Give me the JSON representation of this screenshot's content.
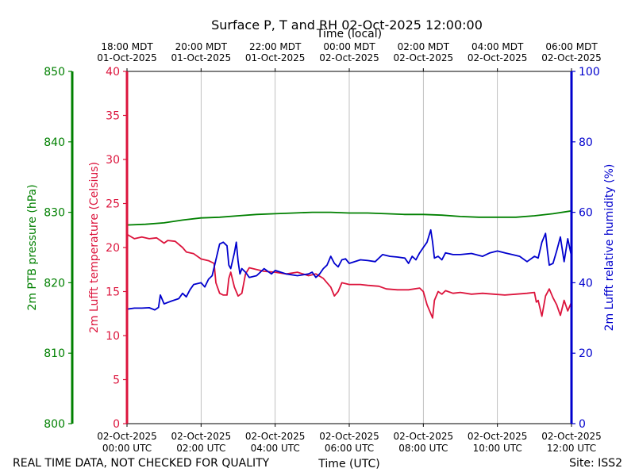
{
  "chart_data": {
    "type": "line",
    "title": "Surface P, T and RH 02-Oct-2025 12:00:00",
    "top_axis_label": "Time (local)",
    "xlabel": "Time (UTC)",
    "x_hours_utc": [
      0,
      12
    ],
    "grid": "vertical lines at 2-hour ticks",
    "top_ticks": [
      {
        "h": 0,
        "line1": "18:00 MDT",
        "line2": "01-Oct-2025"
      },
      {
        "h": 2,
        "line1": "20:00 MDT",
        "line2": "01-Oct-2025"
      },
      {
        "h": 4,
        "line1": "22:00 MDT",
        "line2": "01-Oct-2025"
      },
      {
        "h": 6,
        "line1": "00:00 MDT",
        "line2": "02-Oct-2025"
      },
      {
        "h": 8,
        "line1": "02:00 MDT",
        "line2": "02-Oct-2025"
      },
      {
        "h": 10,
        "line1": "04:00 MDT",
        "line2": "02-Oct-2025"
      },
      {
        "h": 12,
        "line1": "06:00 MDT",
        "line2": "02-Oct-2025"
      }
    ],
    "bottom_ticks": [
      {
        "h": 0,
        "line1": "02-Oct-2025",
        "line2": "00:00 UTC"
      },
      {
        "h": 2,
        "line1": "02-Oct-2025",
        "line2": "02:00 UTC"
      },
      {
        "h": 4,
        "line1": "02-Oct-2025",
        "line2": "04:00 UTC"
      },
      {
        "h": 6,
        "line1": "02-Oct-2025",
        "line2": "06:00 UTC"
      },
      {
        "h": 8,
        "line1": "02-Oct-2025",
        "line2": "08:00 UTC"
      },
      {
        "h": 10,
        "line1": "02-Oct-2025",
        "line2": "10:00 UTC"
      },
      {
        "h": 12,
        "line1": "02-Oct-2025",
        "line2": "12:00 UTC"
      }
    ],
    "axes": {
      "pressure": {
        "label": "2m PTB pressure (hPa)",
        "ylim": [
          800,
          850
        ],
        "ticks": [
          800,
          810,
          820,
          830,
          840,
          850
        ],
        "color": "#008000"
      },
      "temperature": {
        "label": "2m Lufft temperature (Celsius)",
        "ylim": [
          0,
          40
        ],
        "ticks": [
          0,
          5,
          10,
          15,
          20,
          25,
          30,
          35,
          40
        ],
        "color": "#dc143c"
      },
      "humidity": {
        "label": "2m Lufft relative humidity (%)",
        "ylim": [
          0,
          100
        ],
        "ticks": [
          0,
          20,
          40,
          60,
          80,
          100
        ],
        "color": "#0000cd"
      }
    },
    "series": [
      {
        "name": "2m PTB pressure (hPa)",
        "axis": "pressure",
        "color": "#008000",
        "points": [
          [
            0,
            828.2
          ],
          [
            0.5,
            828.3
          ],
          [
            1,
            828.5
          ],
          [
            1.5,
            828.9
          ],
          [
            2,
            829.2
          ],
          [
            2.5,
            829.3
          ],
          [
            3,
            829.5
          ],
          [
            3.5,
            829.7
          ],
          [
            4,
            829.8
          ],
          [
            4.5,
            829.9
          ],
          [
            5,
            830.0
          ],
          [
            5.5,
            830.0
          ],
          [
            6,
            829.9
          ],
          [
            6.5,
            829.9
          ],
          [
            7,
            829.8
          ],
          [
            7.5,
            829.7
          ],
          [
            8,
            829.7
          ],
          [
            8.5,
            829.6
          ],
          [
            9,
            829.4
          ],
          [
            9.5,
            829.3
          ],
          [
            10,
            829.3
          ],
          [
            10.5,
            829.3
          ],
          [
            11,
            829.5
          ],
          [
            11.5,
            829.8
          ],
          [
            12,
            830.2
          ]
        ]
      },
      {
        "name": "2m Lufft temperature (Celsius)",
        "axis": "temperature",
        "color": "#dc143c",
        "points": [
          [
            0,
            21.5
          ],
          [
            0.2,
            21.0
          ],
          [
            0.4,
            21.2
          ],
          [
            0.6,
            21.0
          ],
          [
            0.8,
            21.1
          ],
          [
            0.9,
            20.8
          ],
          [
            1.0,
            20.5
          ],
          [
            1.1,
            20.8
          ],
          [
            1.3,
            20.7
          ],
          [
            1.5,
            20.0
          ],
          [
            1.6,
            19.5
          ],
          [
            1.8,
            19.3
          ],
          [
            2.0,
            18.7
          ],
          [
            2.2,
            18.5
          ],
          [
            2.35,
            18.2
          ],
          [
            2.4,
            16.0
          ],
          [
            2.5,
            14.8
          ],
          [
            2.6,
            14.6
          ],
          [
            2.7,
            14.6
          ],
          [
            2.75,
            16.5
          ],
          [
            2.8,
            17.2
          ],
          [
            2.9,
            15.5
          ],
          [
            3.0,
            14.5
          ],
          [
            3.1,
            14.8
          ],
          [
            3.2,
            17.0
          ],
          [
            3.3,
            17.7
          ],
          [
            3.5,
            17.5
          ],
          [
            3.7,
            17.3
          ],
          [
            4.0,
            17.2
          ],
          [
            4.3,
            17.0
          ],
          [
            4.6,
            17.2
          ],
          [
            4.9,
            16.8
          ],
          [
            5.1,
            17.0
          ],
          [
            5.3,
            16.5
          ],
          [
            5.5,
            15.5
          ],
          [
            5.6,
            14.5
          ],
          [
            5.7,
            15.0
          ],
          [
            5.8,
            16.0
          ],
          [
            6.0,
            15.8
          ],
          [
            6.3,
            15.8
          ],
          [
            6.5,
            15.7
          ],
          [
            6.8,
            15.6
          ],
          [
            7.0,
            15.3
          ],
          [
            7.3,
            15.2
          ],
          [
            7.6,
            15.2
          ],
          [
            7.9,
            15.4
          ],
          [
            8.0,
            15.0
          ],
          [
            8.1,
            13.5
          ],
          [
            8.2,
            12.5
          ],
          [
            8.25,
            12.0
          ],
          [
            8.3,
            14.0
          ],
          [
            8.4,
            15.0
          ],
          [
            8.5,
            14.7
          ],
          [
            8.6,
            15.1
          ],
          [
            8.8,
            14.8
          ],
          [
            9.0,
            14.9
          ],
          [
            9.3,
            14.7
          ],
          [
            9.6,
            14.8
          ],
          [
            9.9,
            14.7
          ],
          [
            10.2,
            14.6
          ],
          [
            10.5,
            14.7
          ],
          [
            10.8,
            14.8
          ],
          [
            11.0,
            14.9
          ],
          [
            11.05,
            13.8
          ],
          [
            11.1,
            14.0
          ],
          [
            11.2,
            12.2
          ],
          [
            11.3,
            14.5
          ],
          [
            11.4,
            15.3
          ],
          [
            11.5,
            14.3
          ],
          [
            11.6,
            13.5
          ],
          [
            11.7,
            12.3
          ],
          [
            11.8,
            14.0
          ],
          [
            11.9,
            12.8
          ],
          [
            12.0,
            13.8
          ]
        ]
      },
      {
        "name": "2m Lufft relative humidity (%)",
        "axis": "humidity",
        "color": "#0000cd",
        "points": [
          [
            0,
            32.5
          ],
          [
            0.2,
            32.8
          ],
          [
            0.4,
            32.8
          ],
          [
            0.6,
            32.9
          ],
          [
            0.75,
            32.3
          ],
          [
            0.85,
            33.0
          ],
          [
            0.9,
            36.5
          ],
          [
            1.0,
            34.0
          ],
          [
            1.2,
            34.8
          ],
          [
            1.4,
            35.5
          ],
          [
            1.5,
            37.0
          ],
          [
            1.6,
            36.0
          ],
          [
            1.7,
            38.0
          ],
          [
            1.8,
            39.5
          ],
          [
            2.0,
            40.0
          ],
          [
            2.1,
            38.8
          ],
          [
            2.2,
            41.0
          ],
          [
            2.3,
            42.0
          ],
          [
            2.4,
            46.5
          ],
          [
            2.5,
            51.0
          ],
          [
            2.6,
            51.5
          ],
          [
            2.7,
            50.5
          ],
          [
            2.75,
            45.0
          ],
          [
            2.8,
            44.0
          ],
          [
            2.9,
            48.5
          ],
          [
            2.95,
            51.5
          ],
          [
            3.0,
            46.0
          ],
          [
            3.05,
            42.5
          ],
          [
            3.1,
            44.0
          ],
          [
            3.2,
            43.0
          ],
          [
            3.3,
            41.5
          ],
          [
            3.5,
            42.0
          ],
          [
            3.7,
            44.0
          ],
          [
            3.9,
            42.5
          ],
          [
            4.0,
            43.5
          ],
          [
            4.3,
            42.5
          ],
          [
            4.6,
            42.0
          ],
          [
            4.9,
            42.5
          ],
          [
            5.0,
            43.0
          ],
          [
            5.1,
            41.5
          ],
          [
            5.2,
            42.5
          ],
          [
            5.3,
            44.0
          ],
          [
            5.4,
            45.0
          ],
          [
            5.5,
            47.5
          ],
          [
            5.6,
            45.5
          ],
          [
            5.7,
            44.5
          ],
          [
            5.8,
            46.5
          ],
          [
            5.9,
            46.8
          ],
          [
            6.0,
            45.5
          ],
          [
            6.3,
            46.5
          ],
          [
            6.5,
            46.3
          ],
          [
            6.7,
            46.0
          ],
          [
            6.9,
            48.0
          ],
          [
            7.1,
            47.5
          ],
          [
            7.3,
            47.3
          ],
          [
            7.5,
            47.0
          ],
          [
            7.6,
            45.5
          ],
          [
            7.7,
            47.5
          ],
          [
            7.8,
            46.5
          ],
          [
            7.9,
            48.5
          ],
          [
            8.0,
            50.0
          ],
          [
            8.1,
            51.5
          ],
          [
            8.2,
            55.0
          ],
          [
            8.25,
            51.5
          ],
          [
            8.3,
            47.0
          ],
          [
            8.4,
            47.5
          ],
          [
            8.5,
            46.5
          ],
          [
            8.6,
            48.5
          ],
          [
            8.8,
            48.0
          ],
          [
            9.0,
            48.0
          ],
          [
            9.3,
            48.3
          ],
          [
            9.6,
            47.5
          ],
          [
            9.8,
            48.5
          ],
          [
            10.0,
            49.0
          ],
          [
            10.2,
            48.5
          ],
          [
            10.4,
            48.0
          ],
          [
            10.6,
            47.5
          ],
          [
            10.8,
            46.0
          ],
          [
            11.0,
            47.5
          ],
          [
            11.1,
            47.0
          ],
          [
            11.2,
            51.5
          ],
          [
            11.3,
            54.0
          ],
          [
            11.35,
            49.0
          ],
          [
            11.4,
            45.0
          ],
          [
            11.5,
            45.5
          ],
          [
            11.6,
            49.0
          ],
          [
            11.7,
            53.0
          ],
          [
            11.8,
            46.0
          ],
          [
            11.9,
            52.5
          ],
          [
            12.0,
            47.5
          ]
        ]
      }
    ]
  },
  "footer": {
    "disclaimer": "REAL TIME DATA, NOT CHECKED FOR QUALITY",
    "site": "Site: ISS2"
  }
}
